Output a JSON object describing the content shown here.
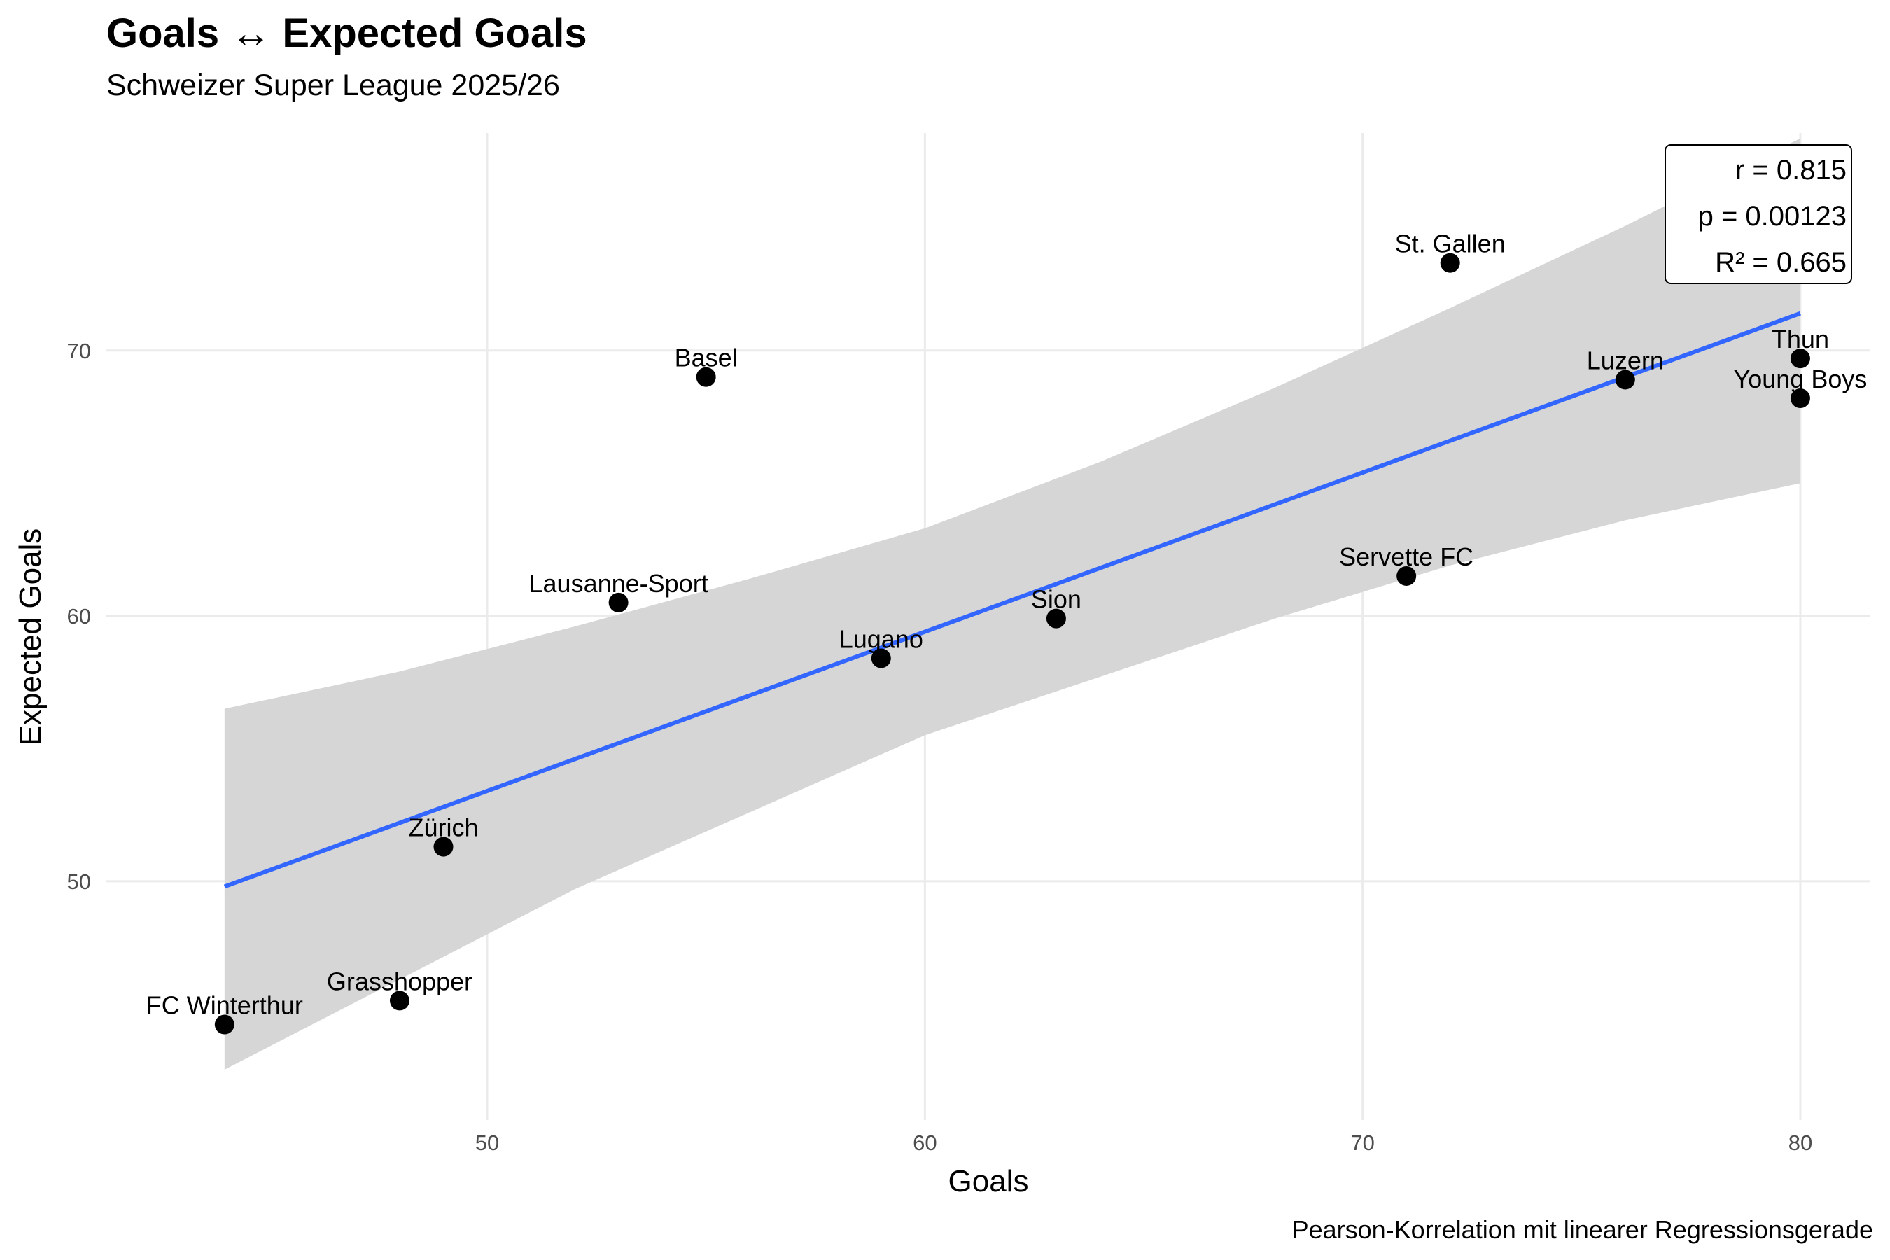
{
  "title": "Goals ↔ Expected Goals",
  "subtitle": "Schweizer Super League 2025/26",
  "caption": "Pearson-Korrelation mit linearer Regressionsgerade",
  "stats": {
    "r": "r = 0.815",
    "p": "p = 0.00123",
    "r2": "R² = 0.665"
  },
  "colors": {
    "regression_line": "#3366FF",
    "confidence_band": "#D6D6D6",
    "grid": "#EBEBEB",
    "points": "#000000"
  },
  "chart_data": {
    "type": "scatter",
    "title": "Goals ↔ Expected Goals",
    "subtitle": "Schweizer Super League 2025/26",
    "xlabel": "Goals",
    "ylabel": "Expected Goals",
    "xlim": [
      41.3,
      81.6
    ],
    "ylim": [
      41,
      78.2
    ],
    "x_ticks": [
      50,
      60,
      70,
      80
    ],
    "y_ticks": [
      50,
      60,
      70
    ],
    "grid": true,
    "points": [
      {
        "label": "FC Winterthur",
        "x": 44,
        "y": 44.6
      },
      {
        "label": "Grasshopper",
        "x": 48,
        "y": 45.5
      },
      {
        "label": "Zürich",
        "x": 49,
        "y": 51.3
      },
      {
        "label": "Lausanne-Sport",
        "x": 53,
        "y": 60.5
      },
      {
        "label": "Basel",
        "x": 55,
        "y": 69.0
      },
      {
        "label": "Lugano",
        "x": 59,
        "y": 58.4
      },
      {
        "label": "Sion",
        "x": 63,
        "y": 59.9
      },
      {
        "label": "Servette FC",
        "x": 71,
        "y": 61.5
      },
      {
        "label": "St. Gallen",
        "x": 72,
        "y": 73.3
      },
      {
        "label": "Luzern",
        "x": 76,
        "y": 68.9
      },
      {
        "label": "Thun",
        "x": 80,
        "y": 69.7
      },
      {
        "label": "Young Boys",
        "x": 80,
        "y": 68.2
      }
    ],
    "regression": {
      "x": [
        44,
        80
      ],
      "y": [
        49.8,
        71.4
      ]
    },
    "confidence_band": {
      "x": [
        44,
        48,
        52,
        56,
        60,
        64,
        68,
        72,
        76,
        80
      ],
      "upper": [
        56.5,
        57.9,
        59.6,
        61.4,
        63.3,
        65.8,
        68.6,
        71.6,
        74.7,
        78.0
      ],
      "lower": [
        42.9,
        46.3,
        49.7,
        52.6,
        55.5,
        57.7,
        59.9,
        61.9,
        63.6,
        65.0
      ]
    }
  }
}
